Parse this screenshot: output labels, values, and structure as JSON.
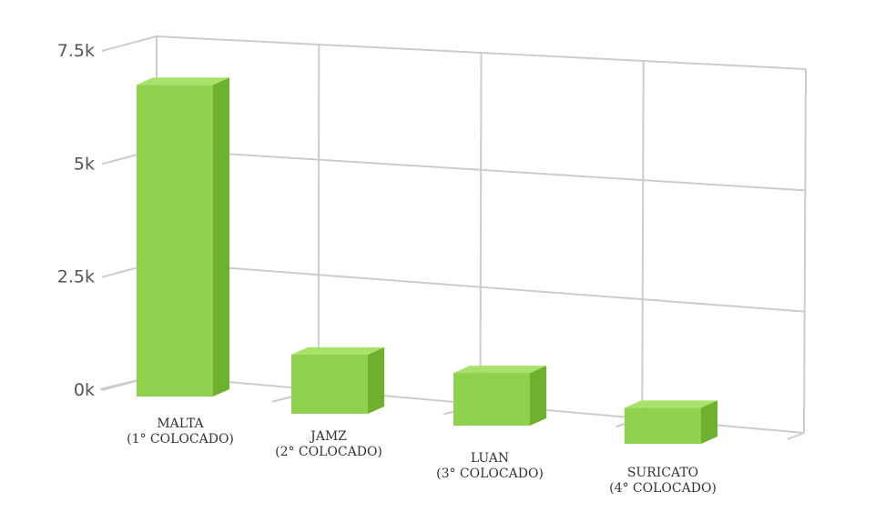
{
  "chart_data": {
    "type": "bar",
    "style": "3d",
    "title": "",
    "xlabel": "",
    "ylabel": "",
    "ylim": [
      0,
      7500
    ],
    "yticks": [
      {
        "value": 0,
        "label": "0k"
      },
      {
        "value": 2500,
        "label": "2.5k"
      },
      {
        "value": 5000,
        "label": "5k"
      },
      {
        "value": 7500,
        "label": "7.5k"
      }
    ],
    "categories": [
      {
        "name": "MALTA",
        "place": "(1° COLOCADO)"
      },
      {
        "name": "JAMZ",
        "place": "(2° COLOCADO)"
      },
      {
        "name": "LUAN",
        "place": "(3° COLOCADO)"
      },
      {
        "name": "SURICATO",
        "place": "(4° COLOCADO)"
      }
    ],
    "values": [
      7100,
      1350,
      1200,
      820
    ],
    "grid": true,
    "colors": {
      "front": "#8fd14f",
      "side": "#6eb12e",
      "top": "#a8e26a",
      "grid": "#cccccc",
      "tick_text": "#555555",
      "label_text": "#333333"
    }
  }
}
